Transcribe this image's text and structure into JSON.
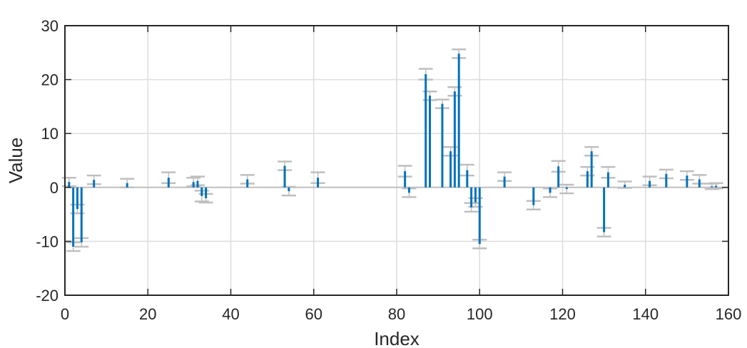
{
  "chart_data": {
    "type": "stem",
    "xlabel": "Index",
    "ylabel": "Value",
    "xlim": [
      0,
      160
    ],
    "ylim": [
      -20,
      30
    ],
    "xticks": [
      "0",
      "20",
      "40",
      "60",
      "80",
      "100",
      "120",
      "140",
      "160"
    ],
    "yticks": [
      "-20",
      "-10",
      "0",
      "10",
      "20",
      "30"
    ],
    "grid": true,
    "baseline": 0,
    "colors": {
      "stem": "#0072BD",
      "errorbar": "#BFBFBF",
      "grid": "#DCDCDC",
      "axes": "#262626",
      "baseline": "#BFBFBF"
    },
    "points": [
      {
        "x": 1,
        "y": 1.0,
        "err": 0.8
      },
      {
        "x": 2,
        "y": -11.0,
        "err": 0.8
      },
      {
        "x": 3,
        "y": -4.0,
        "err": 0.8
      },
      {
        "x": 4,
        "y": -10.2,
        "err": 0.8
      },
      {
        "x": 7,
        "y": 1.4,
        "err": 0.8
      },
      {
        "x": 15,
        "y": 0.8,
        "err": 0.8
      },
      {
        "x": 25,
        "y": 1.8,
        "err": 1.0
      },
      {
        "x": 31,
        "y": 1.0,
        "err": 0.8
      },
      {
        "x": 32,
        "y": 1.2,
        "err": 0.8
      },
      {
        "x": 33,
        "y": -1.6,
        "err": 1.0
      },
      {
        "x": 34,
        "y": -2.0,
        "err": 0.8
      },
      {
        "x": 44,
        "y": 1.5,
        "err": 0.8
      },
      {
        "x": 53,
        "y": 4.0,
        "err": 0.8
      },
      {
        "x": 54,
        "y": -0.7,
        "err": 0.8
      },
      {
        "x": 61,
        "y": 1.8,
        "err": 1.0
      },
      {
        "x": 82,
        "y": 3.0,
        "err": 1.0
      },
      {
        "x": 83,
        "y": -1.0,
        "err": 0.8
      },
      {
        "x": 87,
        "y": 21.0,
        "err": 1.0
      },
      {
        "x": 88,
        "y": 17.0,
        "err": 0.8
      },
      {
        "x": 91,
        "y": 15.5,
        "err": 0.8
      },
      {
        "x": 93,
        "y": 6.7,
        "err": 0.8
      },
      {
        "x": 94,
        "y": 17.8,
        "err": 0.8
      },
      {
        "x": 95,
        "y": 24.8,
        "err": 0.8
      },
      {
        "x": 97,
        "y": 3.2,
        "err": 1.0
      },
      {
        "x": 98,
        "y": -3.7,
        "err": 0.8
      },
      {
        "x": 99,
        "y": -2.8,
        "err": 0.8
      },
      {
        "x": 100,
        "y": -10.5,
        "err": 0.8
      },
      {
        "x": 106,
        "y": 2.0,
        "err": 0.8
      },
      {
        "x": 113,
        "y": -3.3,
        "err": 0.8
      },
      {
        "x": 117,
        "y": -1.0,
        "err": 0.8
      },
      {
        "x": 119,
        "y": 3.9,
        "err": 1.0
      },
      {
        "x": 121,
        "y": -0.3,
        "err": 0.8
      },
      {
        "x": 126,
        "y": 3.0,
        "err": 0.8
      },
      {
        "x": 127,
        "y": 6.7,
        "err": 0.8
      },
      {
        "x": 130,
        "y": -8.3,
        "err": 0.8
      },
      {
        "x": 131,
        "y": 2.8,
        "err": 1.0
      },
      {
        "x": 135,
        "y": 0.5,
        "err": 0.6
      },
      {
        "x": 141,
        "y": 1.2,
        "err": 0.8
      },
      {
        "x": 145,
        "y": 2.5,
        "err": 0.8
      },
      {
        "x": 150,
        "y": 2.2,
        "err": 0.8
      },
      {
        "x": 153,
        "y": 1.5,
        "err": 0.8
      },
      {
        "x": 156,
        "y": 0.2,
        "err": 0.5
      },
      {
        "x": 157,
        "y": 0.3,
        "err": 0.5
      }
    ]
  }
}
